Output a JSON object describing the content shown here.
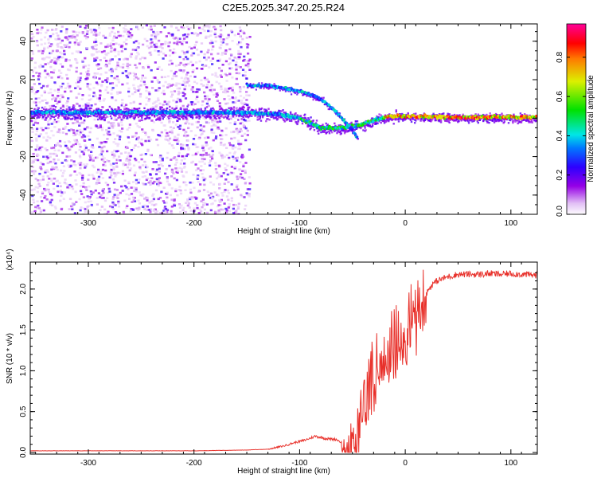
{
  "title": "C2E5.2025.347.20.25.R24",
  "chart_data": [
    {
      "type": "heatmap",
      "xlabel": "Height of straight line (km)",
      "ylabel": "Frequency (Hz)",
      "xlim": [
        -355,
        125
      ],
      "ylim": [
        -50,
        49
      ],
      "xticks": [
        -300,
        -200,
        -100,
        0,
        100
      ],
      "yticks": [
        -40,
        -20,
        0,
        20,
        40
      ],
      "xtick_labels": [
        "-300",
        "-200",
        "-100",
        "0",
        "100"
      ],
      "ytick_labels": [
        "-40",
        "-20",
        "0",
        "20",
        "40"
      ],
      "colorbar": {
        "label": "Normalized spectral amplitude",
        "range": [
          0.0,
          0.97
        ],
        "ticks": [
          0.0,
          0.2,
          0.4,
          0.6,
          0.8
        ],
        "tick_labels": [
          "0.0",
          "0.2",
          "0.4",
          "0.6",
          "0.8"
        ],
        "colormap": "rainbow (white-violet-blue-cyan-green-yellow-red-magenta)"
      },
      "features": {
        "main_track": [
          {
            "x": -355,
            "f": 3
          },
          {
            "x": -300,
            "f": 3
          },
          {
            "x": -200,
            "f": 3
          },
          {
            "x": -150,
            "f": 3
          },
          {
            "x": -120,
            "f": 2
          },
          {
            "x": -100,
            "f": 0
          },
          {
            "x": -80,
            "f": -5
          },
          {
            "x": -60,
            "f": -5
          },
          {
            "x": -45,
            "f": -4
          },
          {
            "x": -30,
            "f": -1
          },
          {
            "x": -15,
            "f": 1
          },
          {
            "x": 0,
            "f": 1
          },
          {
            "x": 50,
            "f": 0.5
          },
          {
            "x": 125,
            "f": 0.5
          }
        ],
        "secondary_track": [
          {
            "x": -150,
            "f": 17
          },
          {
            "x": -130,
            "f": 17
          },
          {
            "x": -100,
            "f": 14
          },
          {
            "x": -80,
            "f": 10
          },
          {
            "x": -65,
            "f": 3
          },
          {
            "x": -55,
            "f": -3
          },
          {
            "x": -45,
            "f": -10
          }
        ],
        "noise_region_x": [
          -355,
          -148
        ]
      }
    },
    {
      "type": "line",
      "xlabel": "Height of straight line (km)",
      "ylabel": "SNR (10 * v/v)",
      "y_scale_label": "(x10⁴)",
      "xlim": [
        -355,
        125
      ],
      "ylim": [
        -0.02,
        2.33
      ],
      "xticks": [
        -300,
        -200,
        -100,
        0,
        100
      ],
      "yticks": [
        0.0,
        0.5,
        1.0,
        1.5,
        2.0
      ],
      "xtick_labels": [
        "-300",
        "-200",
        "-100",
        "0",
        "100"
      ],
      "ytick_labels": [
        "0.0",
        "0.5",
        "1.0",
        "1.5",
        "2.0"
      ],
      "color": "#e8302a",
      "series": [
        {
          "name": "SNR",
          "points": [
            [
              -355,
              0.02
            ],
            [
              -300,
              0.02
            ],
            [
              -250,
              0.02
            ],
            [
              -200,
              0.02
            ],
            [
              -150,
              0.03
            ],
            [
              -130,
              0.04
            ],
            [
              -115,
              0.08
            ],
            [
              -105,
              0.12
            ],
            [
              -95,
              0.15
            ],
            [
              -85,
              0.2
            ],
            [
              -75,
              0.17
            ],
            [
              -65,
              0.16
            ],
            [
              -58,
              0.1
            ],
            [
              -50,
              0.3
            ],
            [
              -45,
              0.45
            ],
            [
              -40,
              0.55
            ],
            [
              -35,
              0.75
            ],
            [
              -30,
              1.0
            ],
            [
              -25,
              1.15
            ],
            [
              -20,
              1.25
            ],
            [
              -15,
              1.3
            ],
            [
              -10,
              1.38
            ],
            [
              -5,
              1.45
            ],
            [
              0,
              1.55
            ],
            [
              5,
              1.62
            ],
            [
              10,
              1.7
            ],
            [
              15,
              1.82
            ],
            [
              20,
              1.95
            ],
            [
              25,
              2.05
            ],
            [
              30,
              2.1
            ],
            [
              40,
              2.15
            ],
            [
              50,
              2.18
            ],
            [
              60,
              2.18
            ],
            [
              70,
              2.18
            ],
            [
              80,
              2.19
            ],
            [
              90,
              2.18
            ],
            [
              100,
              2.19
            ],
            [
              110,
              2.18
            ],
            [
              125,
              2.17
            ]
          ]
        }
      ]
    }
  ]
}
